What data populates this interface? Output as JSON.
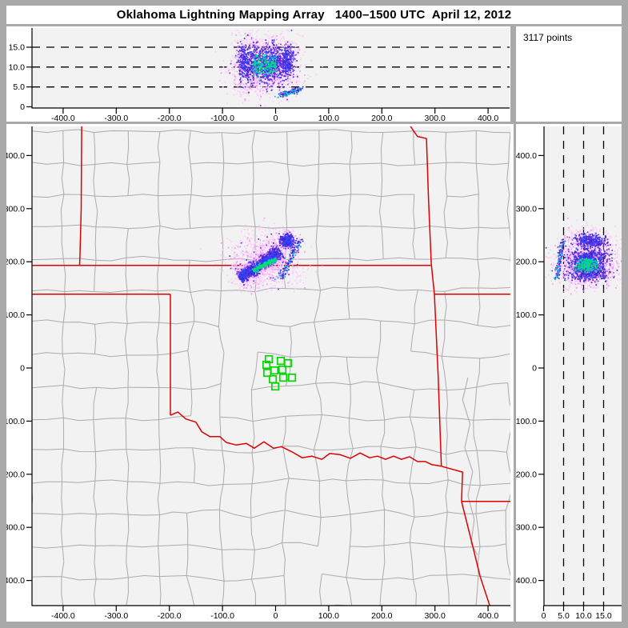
{
  "title": "Oklahoma Lightning Mapping Array   1400–1500 UTC  April 12, 2012",
  "points_box": {
    "label": "3117 points"
  },
  "seed": 1337,
  "colors": {
    "frame": "#a9a9a9",
    "panel": "#ffffff",
    "plot_bg": "#f2f2f2",
    "county": "#ababab",
    "state_border": "#dd0000",
    "river": "#b4b4b4",
    "station": "#00d800",
    "axis": "#000000",
    "dash": "#000000",
    "text": "#000000"
  },
  "chart_data": {
    "type": "scatter",
    "title": "Oklahoma Lightning Mapping Array   1400–1500 UTC  April 12, 2012",
    "time_range_utc": "1400-1500 UTC",
    "date": "April 12, 2012",
    "points_total": 3117,
    "color_scale": [
      "#ffc6ff",
      "#ee9af2",
      "#a855ee",
      "#6633e0",
      "#4422cc",
      "#2b45ff",
      "#00c4e6",
      "#00dd74"
    ],
    "panels": [
      {
        "id": "alt_vs_ew",
        "desc": "altitude (km) vs east-west distance (km)",
        "xlim": [
          -458,
          441
        ],
        "ylim": [
          0,
          19.8
        ],
        "x_ticks": [
          {
            "v": -400,
            "label": "-400.0"
          },
          {
            "v": -300,
            "label": "-300.0"
          },
          {
            "v": -200,
            "label": "-200.0"
          },
          {
            "v": -100,
            "label": "-100.0"
          },
          {
            "v": 0,
            "label": "0"
          },
          {
            "v": 100,
            "label": "100.0"
          },
          {
            "v": 200,
            "label": "200.0"
          },
          {
            "v": 300,
            "label": "300.0"
          },
          {
            "v": 400,
            "label": "400.0"
          }
        ],
        "y_ticks": [
          {
            "v": 0,
            "label": "0"
          },
          {
            "v": 5,
            "label": "5.0"
          },
          {
            "v": 10,
            "label": "10.0"
          },
          {
            "v": 15,
            "label": "15.0"
          }
        ],
        "dashed_y": [
          5,
          10,
          15
        ]
      },
      {
        "id": "plan_view",
        "desc": "plan view map: north-south vs east-west distance (km)",
        "xlim": [
          -458,
          442
        ],
        "ylim": [
          -447,
          455
        ],
        "x_ticks": [
          {
            "v": -400,
            "label": "-400.0"
          },
          {
            "v": -300,
            "label": "-300.0"
          },
          {
            "v": -200,
            "label": "-200.0"
          },
          {
            "v": -100,
            "label": "-100.0"
          },
          {
            "v": 0,
            "label": "0"
          },
          {
            "v": 100,
            "label": "100.0"
          },
          {
            "v": 200,
            "label": "200.0"
          },
          {
            "v": 300,
            "label": "300.0"
          },
          {
            "v": 400,
            "label": "400.0"
          }
        ],
        "y_ticks": [
          {
            "v": 400,
            "label": "400.0"
          },
          {
            "v": 300,
            "label": "300.0"
          },
          {
            "v": 200,
            "label": "200.0"
          },
          {
            "v": 100,
            "label": "100.0"
          },
          {
            "v": 0,
            "label": "0"
          },
          {
            "v": -100,
            "label": "-100.0"
          },
          {
            "v": -200,
            "label": "-200.0"
          },
          {
            "v": -300,
            "label": "-300.0"
          },
          {
            "v": -400,
            "label": "-400.0"
          }
        ]
      },
      {
        "id": "alt_vs_ns",
        "desc": "north-south distance (km) vs altitude (km)",
        "xlim": [
          0,
          19.5
        ],
        "ylim": [
          -447,
          455
        ],
        "x_ticks": [
          {
            "v": 0,
            "label": "0"
          },
          {
            "v": 5,
            "label": "5.0"
          },
          {
            "v": 10,
            "label": "10.0"
          },
          {
            "v": 15,
            "label": "15.0"
          }
        ],
        "y_ticks": [
          {
            "v": 400,
            "label": "400.0"
          },
          {
            "v": 300,
            "label": "300.0"
          },
          {
            "v": 200,
            "label": "200.0"
          },
          {
            "v": 100,
            "label": "100.0"
          },
          {
            "v": 0,
            "label": "0"
          },
          {
            "v": -100,
            "label": "-100.0"
          },
          {
            "v": -200,
            "label": "-200.0"
          },
          {
            "v": -300,
            "label": "-300.0"
          },
          {
            "v": -400,
            "label": "-400.0"
          }
        ],
        "dashed_x": [
          5,
          10,
          15
        ]
      }
    ],
    "clusters": [
      {
        "name": "band_halo",
        "shape": "band",
        "n": 750,
        "p1": [
          -72,
          169
        ],
        "p2": [
          10,
          222
        ],
        "sigma_perp": 14,
        "alt_mu": 10.8,
        "alt_sigma": 3.2,
        "colors": [
          [
            0,
            0.72
          ],
          [
            1,
            0.28
          ]
        ]
      },
      {
        "name": "band_main",
        "shape": "band",
        "n": 950,
        "p1": [
          -70,
          171
        ],
        "p2": [
          8,
          221
        ],
        "sigma_perp": 6,
        "alt_mu": 11,
        "alt_sigma": 2.5,
        "colors": [
          [
            2,
            0.22
          ],
          [
            3,
            0.3
          ],
          [
            4,
            0.28
          ],
          [
            5,
            0.2
          ]
        ]
      },
      {
        "name": "band_core",
        "shape": "band",
        "n": 200,
        "p1": [
          -44,
          185
        ],
        "p2": [
          0,
          206
        ],
        "sigma_perp": 2.2,
        "alt_mu": 10.6,
        "alt_sigma": 1.3,
        "colors": [
          [
            6,
            0.5
          ],
          [
            7,
            0.5
          ]
        ]
      },
      {
        "name": "ne_halo",
        "shape": "blob",
        "n": 140,
        "center": [
          21,
          241
        ],
        "sigma": [
          12,
          10
        ],
        "alt_mu": 11.3,
        "alt_sigma": 2.8,
        "colors": [
          [
            0,
            0.65
          ],
          [
            1,
            0.35
          ]
        ]
      },
      {
        "name": "ne_cell",
        "shape": "blob",
        "n": 320,
        "center": [
          20,
          240
        ],
        "sigma": [
          7,
          6.5
        ],
        "alt_mu": 11.6,
        "alt_sigma": 2.1,
        "colors": [
          [
            2,
            0.25
          ],
          [
            3,
            0.3
          ],
          [
            4,
            0.25
          ],
          [
            5,
            0.2
          ]
        ]
      },
      {
        "name": "outer_halo",
        "shape": "blob",
        "n": 570,
        "center": [
          -20,
          205
        ],
        "sigma": [
          34,
          27
        ],
        "alt_mu": 10,
        "alt_sigma": 3.8,
        "colors": [
          [
            0,
            0.78
          ],
          [
            1,
            0.16
          ],
          [
            3,
            0.06
          ]
        ]
      },
      {
        "name": "low_level_streak",
        "shape": "streak",
        "n": 120,
        "y_range": [
          168,
          244
        ],
        "x0": 8,
        "x_slope": 0.5,
        "x_jitter": 4,
        "alt0": 3.1,
        "alt_slope": 0.02,
        "alt_jitter": 0.3,
        "colors": [
          [
            4,
            0.45
          ],
          [
            3,
            0.3
          ],
          [
            6,
            0.25
          ]
        ]
      },
      {
        "name": "scattered",
        "shape": "uniform",
        "n": 67,
        "x_range": [
          -85,
          55
        ],
        "y_range": [
          150,
          272
        ],
        "alt_range": [
          3,
          19
        ],
        "colors": [
          [
            0,
            1
          ]
        ]
      }
    ],
    "stations_km": [
      [
        -12.8,
        16.6
      ],
      [
        9.8,
        13.6
      ],
      [
        23.3,
        9.0
      ],
      [
        -17.3,
        6.0
      ],
      [
        -2.3,
        -4.5
      ],
      [
        12.8,
        -3.0
      ],
      [
        30.9,
        -18.1
      ],
      [
        14.3,
        -18.1
      ],
      [
        -5.3,
        -21.1
      ],
      [
        -15.8,
        -9.0
      ],
      [
        -0.8,
        -34.6
      ]
    ],
    "state_borders_km": [
      {
        "name": "colorado-kansas-west",
        "points": [
          [
            -365,
            455
          ],
          [
            -366,
            300
          ],
          [
            -368,
            220
          ],
          [
            -369,
            193
          ]
        ]
      },
      {
        "name": "kansas-oklahoma-north",
        "points": [
          [
            -459,
            193
          ],
          [
            292,
            193
          ]
        ]
      },
      {
        "name": "ok-panhandle-south",
        "points": [
          [
            -459,
            139
          ],
          [
            -198,
            139
          ]
        ]
      },
      {
        "name": "texas-oklahoma-100w",
        "points": [
          [
            -198,
            139
          ],
          [
            -198,
            -89
          ]
        ]
      },
      {
        "name": "red-river",
        "points": [
          [
            -198,
            -89
          ],
          [
            -184,
            -83
          ],
          [
            -169,
            -96
          ],
          [
            -150,
            -102
          ],
          [
            -139,
            -120
          ],
          [
            -124,
            -129
          ],
          [
            -105,
            -129
          ],
          [
            -93,
            -140
          ],
          [
            -74,
            -145
          ],
          [
            -55,
            -142
          ],
          [
            -40,
            -151
          ],
          [
            -22,
            -139
          ],
          [
            -4,
            -151
          ],
          [
            11,
            -148
          ],
          [
            31,
            -158
          ],
          [
            50,
            -169
          ],
          [
            68,
            -166
          ],
          [
            87,
            -172
          ],
          [
            102,
            -161
          ],
          [
            121,
            -163
          ],
          [
            141,
            -170
          ],
          [
            159,
            -160
          ],
          [
            177,
            -169
          ],
          [
            192,
            -166
          ],
          [
            207,
            -172
          ],
          [
            222,
            -166
          ],
          [
            237,
            -172
          ],
          [
            252,
            -167
          ],
          [
            267,
            -176
          ],
          [
            282,
            -176
          ],
          [
            294,
            -182
          ],
          [
            312,
            -185
          ]
        ]
      },
      {
        "name": "missouri-arkansas-west",
        "points": [
          [
            254,
            455
          ],
          [
            258,
            449
          ],
          [
            267,
            436
          ],
          [
            284,
            432
          ],
          [
            288,
            316
          ],
          [
            293,
            196
          ],
          [
            299,
            139
          ],
          [
            306,
            -15
          ],
          [
            312,
            -185
          ]
        ]
      },
      {
        "name": "missouri-arkansas-line",
        "points": [
          [
            299,
            139
          ],
          [
            442,
            139
          ]
        ]
      },
      {
        "name": "arkansas-texas-corner",
        "points": [
          [
            312,
            -185
          ],
          [
            352,
            -196
          ],
          [
            350,
            -251
          ]
        ]
      },
      {
        "name": "arkansas-louisiana-south",
        "points": [
          [
            350,
            -251
          ],
          [
            442,
            -251
          ]
        ]
      },
      {
        "name": "texas-louisiana",
        "points": [
          [
            350,
            -251
          ],
          [
            355,
            -271
          ],
          [
            370,
            -331
          ],
          [
            385,
            -392
          ],
          [
            403,
            -447
          ]
        ]
      }
    ],
    "rivers_km": [
      {
        "name": "se-river",
        "points": [
          [
            362,
            -18
          ],
          [
            352,
            -60
          ],
          [
            366,
            -105
          ],
          [
            356,
            -150
          ],
          [
            371,
            -195
          ],
          [
            362,
            -240
          ],
          [
            374,
            -285
          ],
          [
            368,
            -330
          ],
          [
            380,
            -352
          ]
        ]
      }
    ],
    "county_grid": {
      "cell_km": 60,
      "jitter_km": 8,
      "skip_prob": 0.12,
      "regular_skip_prob": 0.05,
      "regular_jitter_factor": 0.35
    }
  }
}
